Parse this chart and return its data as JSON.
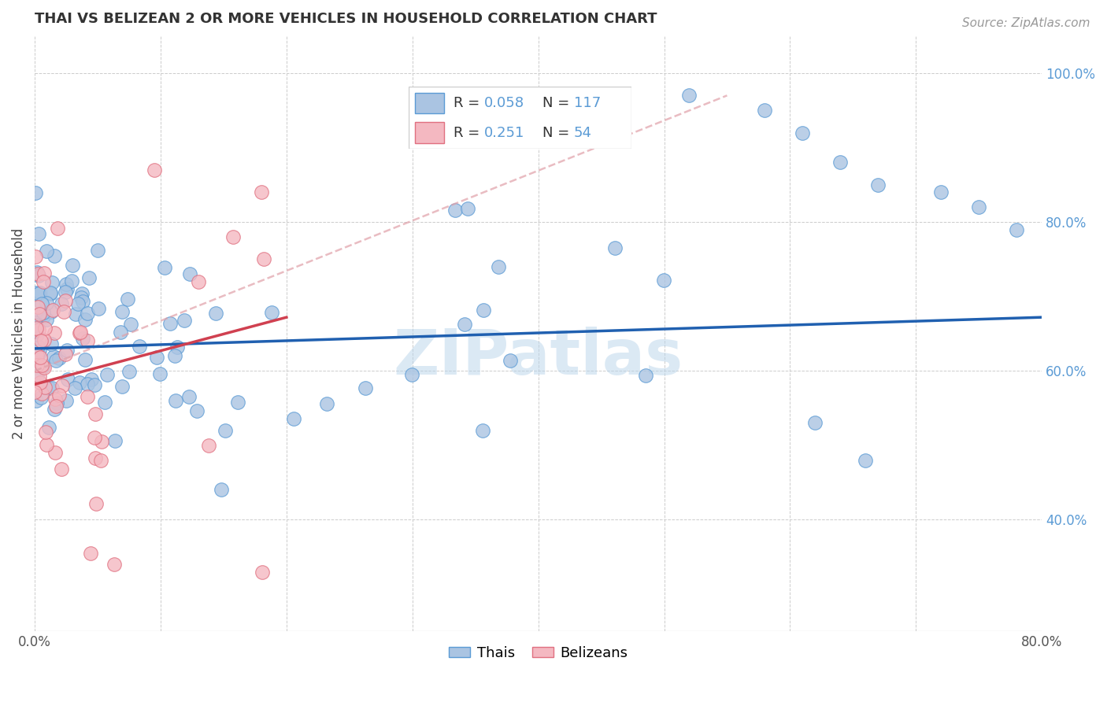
{
  "title": "THAI VS BELIZEAN 2 OR MORE VEHICLES IN HOUSEHOLD CORRELATION CHART",
  "source": "Source: ZipAtlas.com",
  "ylabel": "2 or more Vehicles in Household",
  "xlim": [
    0.0,
    0.8
  ],
  "ylim": [
    0.25,
    1.05
  ],
  "xticks": [
    0.0,
    0.1,
    0.2,
    0.3,
    0.4,
    0.5,
    0.6,
    0.7,
    0.8
  ],
  "xticklabels": [
    "0.0%",
    "",
    "",
    "",
    "",
    "",
    "",
    "",
    "80.0%"
  ],
  "yticks": [
    0.4,
    0.6,
    0.8,
    1.0
  ],
  "yticklabels": [
    "40.0%",
    "60.0%",
    "80.0%",
    "100.0%"
  ],
  "legend_R_blue": "0.058",
  "legend_N_blue": "117",
  "legend_R_pink": "0.251",
  "legend_N_pink": "54",
  "blue_scatter_color": "#aac4e2",
  "blue_edge_color": "#5b9bd5",
  "pink_scatter_color": "#f4b8c1",
  "pink_edge_color": "#e07080",
  "blue_line_color": "#2060b0",
  "pink_line_color": "#d04050",
  "pink_dash_color": "#e0a0a8",
  "watermark": "ZIPatlas",
  "watermark_color": "#b8d4ea",
  "title_fontsize": 13,
  "tick_fontsize": 12,
  "ylabel_fontsize": 12,
  "source_fontsize": 11,
  "legend_fontsize": 14
}
